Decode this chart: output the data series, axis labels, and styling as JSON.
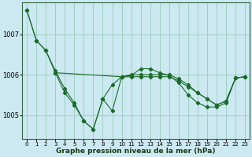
{
  "background_color": "#cce8f0",
  "grid_color": "#99ccbb",
  "line_color": "#1a6b2a",
  "marker_color": "#1a6b2a",
  "xlabel": "Graphe pression niveau de la mer (hPa)",
  "xlabel_fontsize": 6.5,
  "ylabel_fontsize": 6,
  "tick_fontsize": 5,
  "xlim": [
    -0.5,
    23.5
  ],
  "ylim": [
    1004.4,
    1007.8
  ],
  "yticks": [
    1005,
    1006,
    1007
  ],
  "xticks": [
    0,
    1,
    2,
    3,
    4,
    5,
    6,
    7,
    8,
    9,
    10,
    11,
    12,
    13,
    14,
    15,
    16,
    17,
    18,
    19,
    20,
    21,
    22,
    23
  ],
  "line1_x": [
    0,
    1,
    2,
    3,
    4,
    5,
    6,
    7,
    8,
    9,
    10,
    11,
    12,
    13,
    14,
    15,
    16,
    17,
    18,
    19,
    20,
    21,
    22,
    23
  ],
  "line1_y": [
    1007.6,
    1006.85,
    1006.6,
    1006.1,
    1005.65,
    1005.3,
    1004.85,
    1004.65,
    1005.4,
    1005.75,
    1005.95,
    1006.0,
    1006.0,
    1006.0,
    1006.0,
    1006.0,
    1005.9,
    1005.75,
    1005.55,
    1005.4,
    1005.25,
    1005.35,
    1005.92,
    1005.95
  ],
  "line2_x": [
    3,
    4,
    5,
    6,
    7,
    8,
    9,
    10,
    11,
    12,
    13,
    14,
    15,
    16,
    17,
    18,
    19,
    20,
    21,
    22,
    23
  ],
  "line2_y": [
    1006.05,
    1005.55,
    1005.25,
    1004.85,
    1004.65,
    1005.4,
    1005.1,
    1005.95,
    1005.98,
    1006.15,
    1006.15,
    1006.05,
    1005.98,
    1005.8,
    1005.5,
    1005.3,
    1005.2,
    1005.2,
    1005.3,
    1005.92,
    1005.95
  ],
  "line3_x": [
    0,
    1,
    2,
    3,
    10,
    11,
    12,
    13,
    14,
    15,
    16,
    17,
    18,
    19,
    20,
    21,
    22,
    23
  ],
  "line3_y": [
    1007.6,
    1006.85,
    1006.6,
    1006.05,
    1005.95,
    1005.95,
    1005.95,
    1005.95,
    1005.95,
    1005.95,
    1005.85,
    1005.7,
    1005.55,
    1005.4,
    1005.25,
    1005.35,
    1005.92,
    1005.95
  ]
}
